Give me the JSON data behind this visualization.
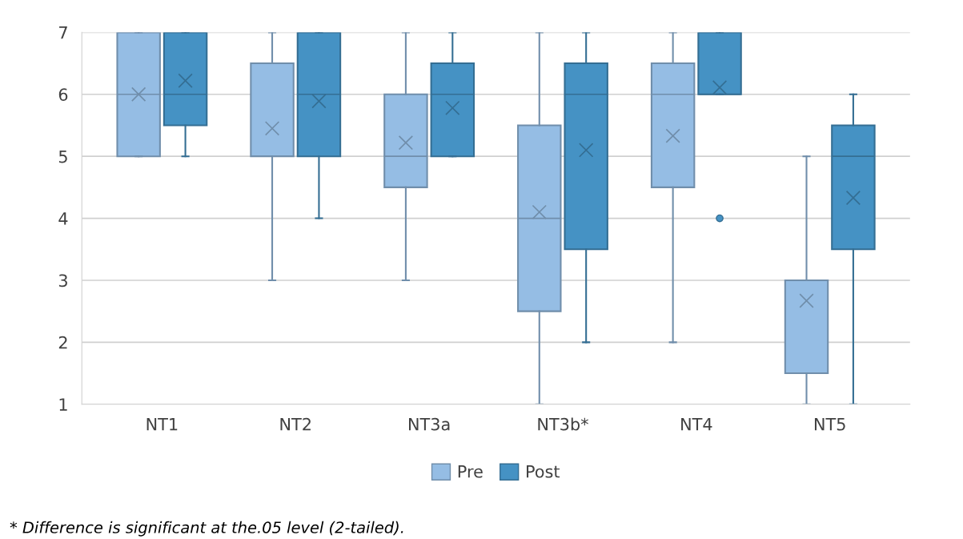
{
  "chart_data": {
    "type": "box",
    "categories": [
      "NT1",
      "NT2",
      "NT3a",
      "NT3b*",
      "NT4",
      "NT5"
    ],
    "series": [
      {
        "name": "Pre",
        "color": "#95bde4",
        "boxes": [
          {
            "low": 5,
            "q1": 5,
            "median": 6,
            "q3": 7,
            "high": 7,
            "mean": 6.0
          },
          {
            "low": 3,
            "q1": 5,
            "median": 5,
            "q3": 6.5,
            "high": 7,
            "mean": 5.45
          },
          {
            "low": 3,
            "q1": 4.5,
            "median": 5,
            "q3": 6,
            "high": 7,
            "mean": 5.22
          },
          {
            "low": 1,
            "q1": 2.5,
            "median": 4,
            "q3": 5.5,
            "high": 7,
            "mean": 4.1
          },
          {
            "low": 2,
            "q1": 4.5,
            "median": 6,
            "q3": 6.5,
            "high": 7,
            "mean": 5.33
          },
          {
            "low": 1,
            "q1": 1.5,
            "median": 3,
            "q3": 3,
            "high": 5,
            "mean": 2.67
          }
        ]
      },
      {
        "name": "Post",
        "color": "#4592c4",
        "boxes": [
          {
            "low": 5,
            "q1": 5.5,
            "median": 6,
            "q3": 7,
            "high": 7,
            "mean": 6.22
          },
          {
            "low": 4,
            "q1": 5,
            "median": 6,
            "q3": 7,
            "high": 7,
            "mean": 5.89
          },
          {
            "low": 5,
            "q1": 5,
            "median": 6,
            "q3": 6.5,
            "high": 7,
            "mean": 5.78
          },
          {
            "low": 2,
            "q1": 3.5,
            "median": 6,
            "q3": 6.5,
            "high": 7,
            "mean": 5.1
          },
          {
            "low": 6,
            "q1": 6,
            "median": 6,
            "q3": 7,
            "high": 7,
            "mean": 6.11,
            "outliers": [
              4
            ]
          },
          {
            "low": 1,
            "q1": 3.5,
            "median": 5,
            "q3": 5.5,
            "high": 6,
            "mean": 4.33
          }
        ]
      }
    ],
    "ylim": [
      1,
      7
    ],
    "yticks": [
      1,
      2,
      3,
      4,
      5,
      6,
      7
    ],
    "grid": "y",
    "legend": "bottom",
    "annotations": [
      "* Difference is significant at the.05 level (2-tailed)."
    ]
  }
}
